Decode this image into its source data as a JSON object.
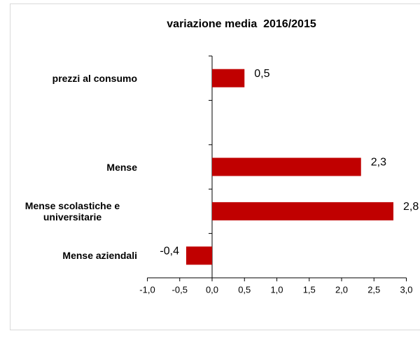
{
  "chart_data": {
    "type": "bar",
    "orientation": "horizontal",
    "title": "variazione media  2016/2015",
    "categories": [
      "prezzi al consumo",
      null,
      "Mense",
      "Mense scolastiche e universitarie",
      "Mense aziendali"
    ],
    "values": [
      0.5,
      null,
      2.3,
      2.8,
      -0.4
    ],
    "value_labels": [
      "0,5",
      null,
      "2,3",
      "2,8",
      "-0,4"
    ],
    "color": "#c00000",
    "xlim": [
      -1.0,
      3.0
    ],
    "xticks": [
      {
        "value": -1.0,
        "label": "-1,0"
      },
      {
        "value": -0.5,
        "label": "-0,5"
      },
      {
        "value": 0.0,
        "label": "0,0"
      },
      {
        "value": 0.5,
        "label": "0,5"
      },
      {
        "value": 1.0,
        "label": "1,0"
      },
      {
        "value": 1.5,
        "label": "1,5"
      },
      {
        "value": 2.0,
        "label": "2,0"
      },
      {
        "value": 2.5,
        "label": "2,5"
      },
      {
        "value": 3.0,
        "label": "3,0"
      }
    ],
    "grid": false
  }
}
